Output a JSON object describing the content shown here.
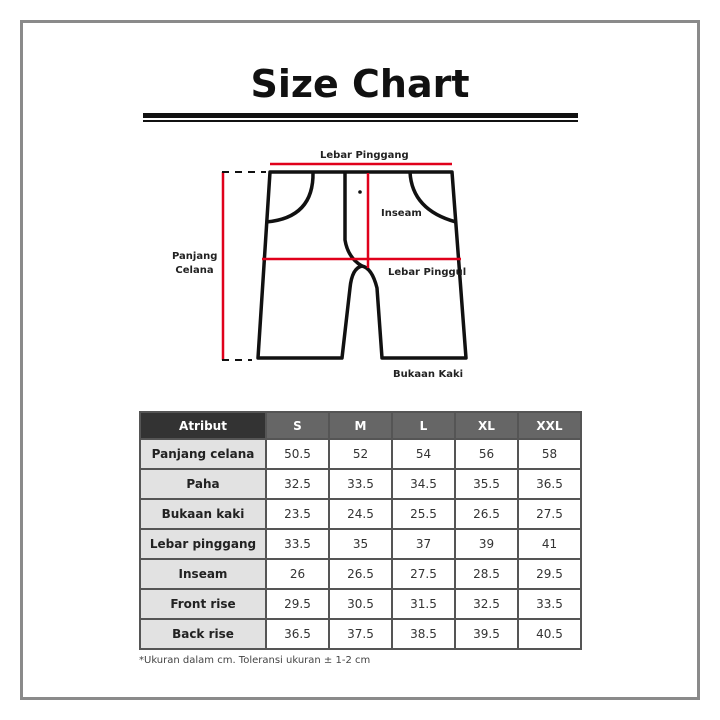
{
  "title": "Size Chart",
  "diagram": {
    "waist": "Lebar Pinggang",
    "inseam": "Inseam",
    "length": [
      "Panjang",
      "Celana"
    ],
    "hip": "Lebar Pinggul",
    "leg_opening": "Bukaan Kaki",
    "accent": "#e0001b"
  },
  "table": {
    "headers": [
      "Atribut",
      "S",
      "M",
      "L",
      "XL",
      "XXL"
    ],
    "rows": [
      {
        "attr": "Panjang celana",
        "values": [
          "50.5",
          "52",
          "54",
          "56",
          "58"
        ]
      },
      {
        "attr": "Paha",
        "values": [
          "32.5",
          "33.5",
          "34.5",
          "35.5",
          "36.5"
        ]
      },
      {
        "attr": "Bukaan kaki",
        "values": [
          "23.5",
          "24.5",
          "25.5",
          "26.5",
          "27.5"
        ]
      },
      {
        "attr": "Lebar pinggang",
        "values": [
          "33.5",
          "35",
          "37",
          "39",
          "41"
        ]
      },
      {
        "attr": "Inseam",
        "values": [
          "26",
          "26.5",
          "27.5",
          "28.5",
          "29.5"
        ]
      },
      {
        "attr": "Front rise",
        "values": [
          "29.5",
          "30.5",
          "31.5",
          "32.5",
          "33.5"
        ]
      },
      {
        "attr": "Back rise",
        "values": [
          "36.5",
          "37.5",
          "38.5",
          "39.5",
          "40.5"
        ]
      }
    ]
  },
  "note": "*Ukuran dalam cm. Toleransi ukuran ± 1-2 cm"
}
